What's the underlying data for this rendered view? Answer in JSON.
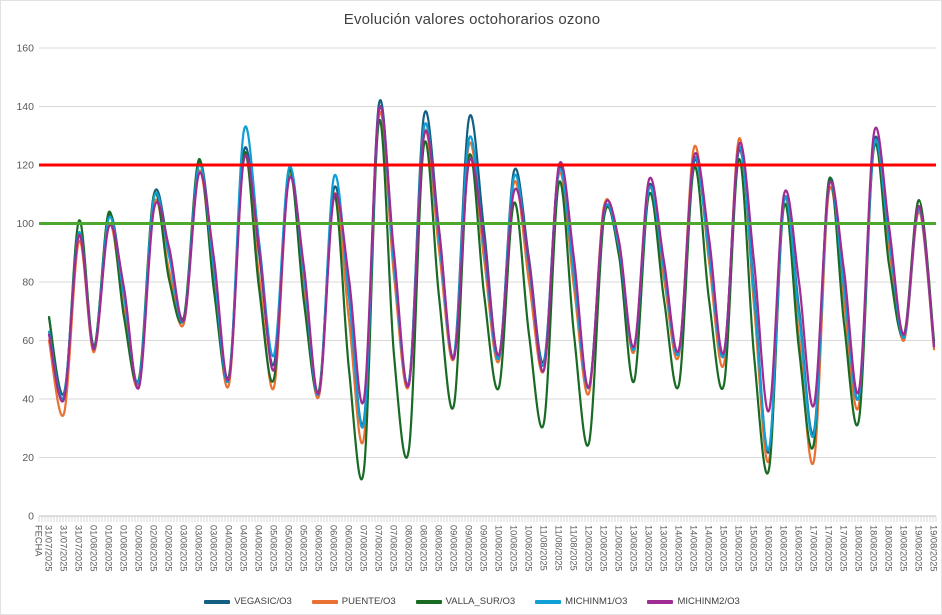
{
  "title": "Evolución valores octohorarios ozono",
  "y_axis": {
    "ticks": [
      160,
      140,
      120,
      100,
      80,
      60,
      40,
      20,
      0
    ],
    "label_color": "#595959",
    "gridline_color": "#d9d9d9"
  },
  "x_axis": {
    "title": "FECHA",
    "dates": [
      "31/07/2025",
      "01/08/2025",
      "02/08/2025",
      "03/08/2025",
      "04/08/2025",
      "05/08/2025",
      "06/08/2025",
      "07/08/2025",
      "08/08/2025",
      "09/08/2025",
      "10/08/2025",
      "11/08/2025",
      "12/08/2025",
      "13/08/2025",
      "14/08/2025",
      "15/08/2025",
      "16/08/2025",
      "17/08/2025",
      "18/08/2025",
      "19/08/2025"
    ],
    "labels_per_date": 3,
    "label_color": "#595959"
  },
  "reference_lines": [
    {
      "name": "umbral-120",
      "value": 120,
      "color": "#ff0000"
    },
    {
      "name": "umbral-100",
      "value": 100,
      "color": "#4ea72e"
    }
  ],
  "chart_data": {
    "type": "line",
    "title": "Evolución valores octohorarios ozono",
    "xlabel": "FECHA",
    "ylabel": "",
    "ylim": [
      0,
      160
    ],
    "grid": true,
    "legend_position": "bottom",
    "points_per_day": 3,
    "series": [
      {
        "name": "VEGASIC/O3",
        "color": "#156082",
        "values": [
          68,
          42,
          96,
          58,
          103,
          76,
          46,
          110,
          91,
          68,
          121,
          86,
          47,
          125,
          90,
          52,
          118,
          82,
          42,
          112,
          75,
          33,
          141,
          88,
          46,
          137,
          98,
          55,
          136,
          98,
          55,
          118,
          88,
          53,
          119,
          84,
          44,
          103,
          93,
          57,
          113,
          84,
          56,
          121,
          91,
          56,
          125,
          78,
          22,
          108,
          71,
          29,
          114,
          80,
          41,
          128,
          96,
          61,
          105,
          59
        ]
      },
      {
        "name": "PUENTE/O3",
        "color": "#e97132",
        "values": [
          60,
          35,
          94,
          56,
          100,
          70,
          45,
          107,
          84,
          66,
          118,
          80,
          45,
          123,
          82,
          44,
          116,
          77,
          41,
          110,
          67,
          27,
          137,
          82,
          45,
          131,
          91,
          54,
          127,
          88,
          53,
          114,
          80,
          50,
          117,
          78,
          42,
          106,
          91,
          56,
          112,
          81,
          55,
          126,
          87,
          52,
          129,
          72,
          19,
          108,
          61,
          19,
          111,
          73,
          38,
          127,
          92,
          60,
          104,
          57
        ]
      },
      {
        "name": "VALLA_SUR/O3",
        "color": "#196b24",
        "values": [
          68,
          40,
          101,
          58,
          104,
          68,
          47,
          110,
          81,
          68,
          122,
          77,
          48,
          124,
          78,
          47,
          118,
          73,
          43,
          110,
          50,
          16,
          135,
          55,
          23,
          127,
          75,
          38,
          123,
          76,
          44,
          107,
          62,
          32,
          114,
          62,
          25,
          102,
          89,
          46,
          110,
          74,
          45,
          119,
          74,
          45,
          122,
          55,
          16,
          106,
          57,
          25,
          115,
          66,
          33,
          126,
          86,
          62,
          108,
          60
        ]
      },
      {
        "name": "MICHINM1/O3",
        "color": "#0f9ed5",
        "values": [
          63,
          41,
          97,
          57,
          102,
          75,
          46,
          109,
          89,
          67,
          120,
          84,
          47,
          132,
          94,
          55,
          119,
          82,
          42,
          116,
          75,
          32,
          139,
          86,
          46,
          133,
          95,
          55,
          129,
          92,
          54,
          116,
          85,
          52,
          118,
          82,
          44,
          104,
          92,
          57,
          112,
          84,
          56,
          122,
          90,
          55,
          126,
          76,
          23,
          108,
          69,
          28,
          113,
          78,
          41,
          127,
          95,
          61,
          105,
          58
        ]
      },
      {
        "name": "MICHINM2/O3",
        "color": "#a02b93",
        "values": [
          62,
          40,
          96,
          57,
          99,
          78,
          44,
          105,
          92,
          67,
          117,
          88,
          47,
          122,
          92,
          50,
          115,
          85,
          42,
          109,
          81,
          40,
          139,
          90,
          45,
          130,
          98,
          54,
          121,
          94,
          55,
          111,
          87,
          50,
          120,
          88,
          44,
          105,
          94,
          58,
          115,
          87,
          57,
          123,
          95,
          56,
          127,
          87,
          36,
          110,
          80,
          38,
          113,
          84,
          43,
          131,
          99,
          62,
          106,
          58
        ]
      }
    ]
  },
  "legend": [
    {
      "label": "VEGASIC/O3",
      "color": "#156082"
    },
    {
      "label": "PUENTE/O3",
      "color": "#e97132"
    },
    {
      "label": "VALLA_SUR/O3",
      "color": "#196b24"
    },
    {
      "label": "MICHINM1/O3",
      "color": "#0f9ed5"
    },
    {
      "label": "MICHINM2/O3",
      "color": "#a02b93"
    }
  ]
}
